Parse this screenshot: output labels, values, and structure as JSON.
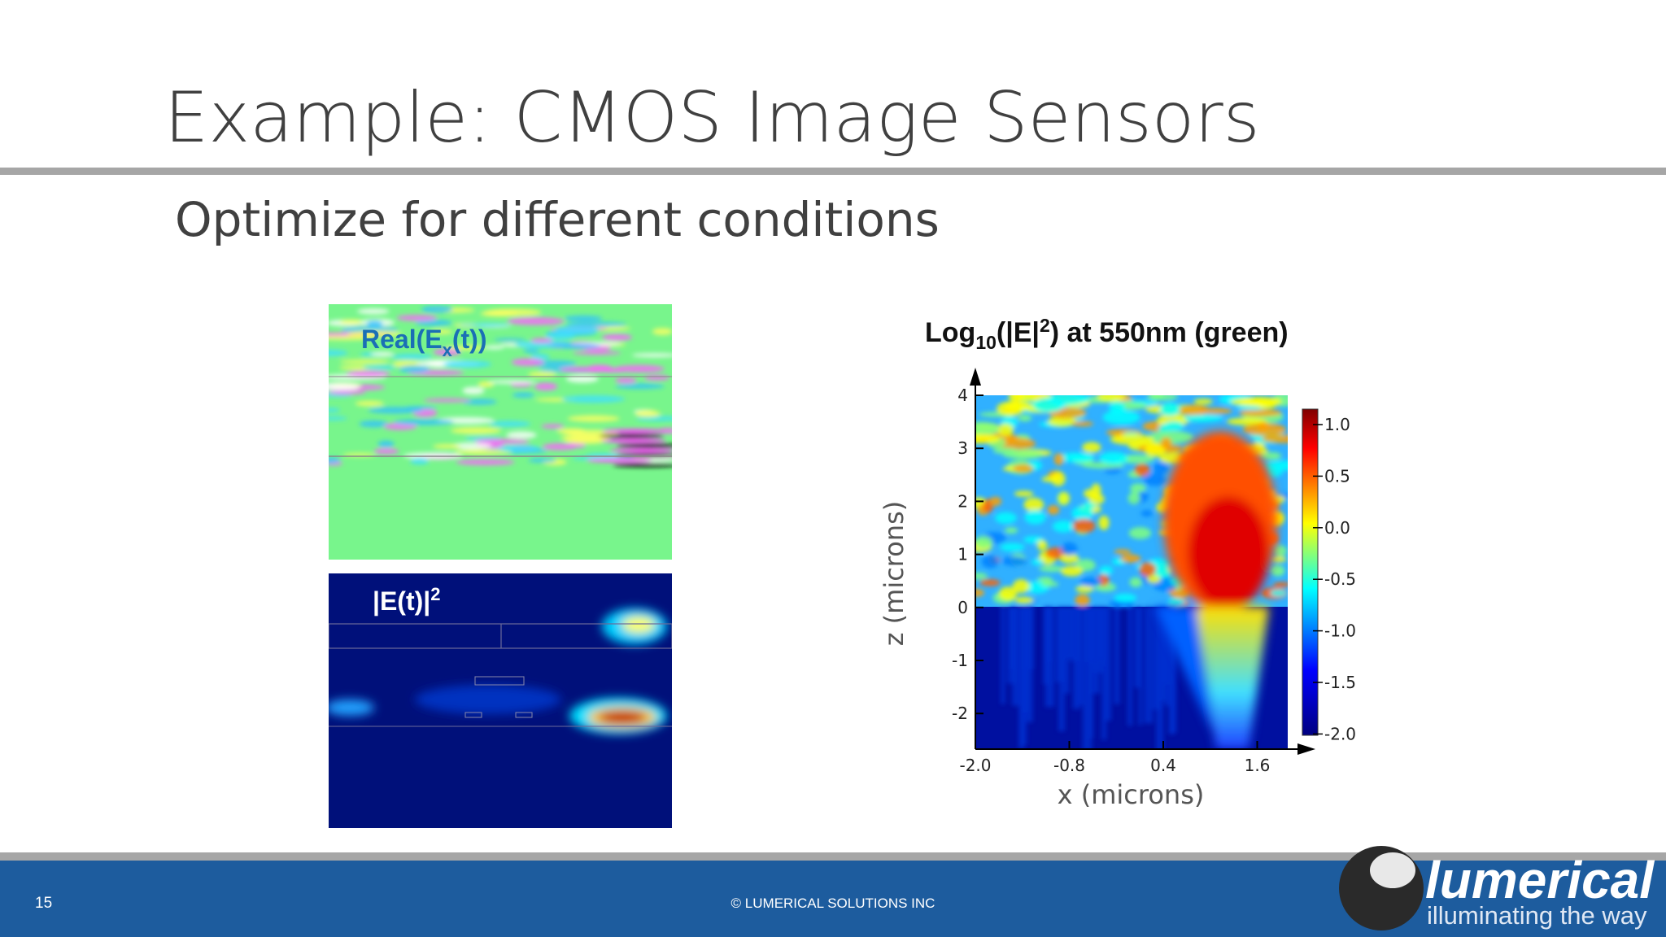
{
  "slide": {
    "title": "Example: CMOS Image Sensors",
    "subtitle": "Optimize for different conditions",
    "page_number": "15",
    "footer": "© LUMERICAL SOLUTIONS INC"
  },
  "panels": [
    {
      "label_parts": [
        "Real(E",
        "x",
        "(t))"
      ]
    },
    {
      "label_parts": [
        "|E(t)|",
        "2"
      ]
    }
  ],
  "plot": {
    "title_parts": [
      "Log",
      "10",
      "(|E|",
      "2",
      ") at 550nm (green)"
    ],
    "x_label": "x  (microns)",
    "y_label": "z  (microns)",
    "x_ticks": [
      "-2.0",
      "-0.8",
      "0.4",
      "1.6"
    ],
    "y_ticks": [
      "4",
      "3",
      "2",
      "1",
      "0",
      "-1",
      "-2"
    ],
    "colorbar_ticks": [
      "1.0",
      "0.5",
      "0.0",
      "-0.5",
      "-1.0",
      "-1.5",
      "-2.0"
    ]
  },
  "logo": {
    "name": "lumerical",
    "tagline": "illuminating the way"
  }
}
